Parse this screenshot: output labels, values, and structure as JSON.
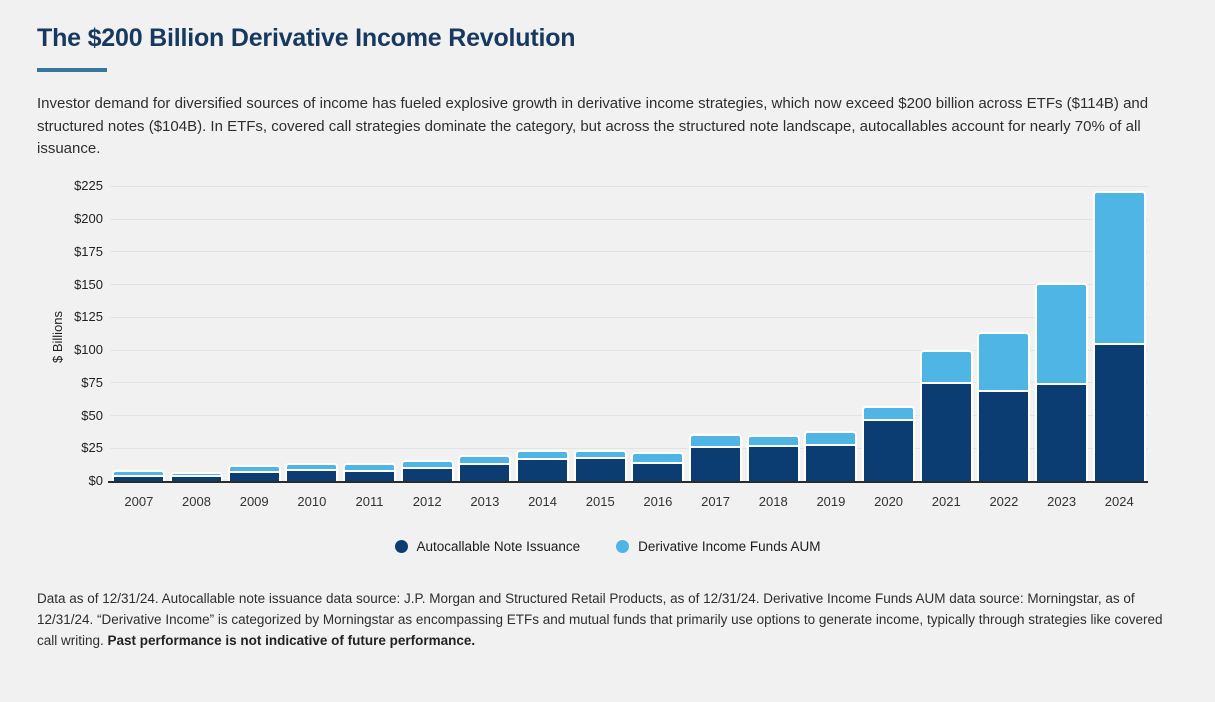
{
  "page": {
    "background": "#f1f1f2"
  },
  "header": {
    "title": "The $200 Billion Derivative Income Revolution",
    "accent_color": "#35789b"
  },
  "intro": {
    "text": "Investor demand for diversified sources of income has fueled explosive growth in derivative income strategies, which now exceed $200 billion across ETFs ($114B) and structured notes ($104B). In ETFs, covered call strategies dominate the category, but across the structured note landscape, autocallables account for nearly 70% of all issuance."
  },
  "chart_data": {
    "type": "bar",
    "stacked": true,
    "title": "",
    "xlabel": "",
    "ylabel": "$ Billions",
    "ylim": [
      0,
      225
    ],
    "ytick_step": 25,
    "yticks": [
      "$0",
      "$25",
      "$50",
      "$75",
      "$100",
      "$125",
      "$150",
      "$175",
      "$200",
      "$225"
    ],
    "grid": true,
    "legend_position": "bottom",
    "categories": [
      "2007",
      "2008",
      "2009",
      "2010",
      "2011",
      "2012",
      "2013",
      "2014",
      "2015",
      "2016",
      "2017",
      "2018",
      "2019",
      "2020",
      "2021",
      "2022",
      "2023",
      "2024"
    ],
    "series": [
      {
        "name": "Autocallable Note Issuance",
        "color": "#0c3d72",
        "values": [
          3,
          3,
          6,
          8,
          7,
          9,
          12,
          16,
          17,
          13,
          25,
          26,
          27,
          46,
          74,
          68,
          73,
          104
        ]
      },
      {
        "name": "Derivative Income Funds AUM",
        "color": "#4fb5e4",
        "values": [
          2,
          1,
          3,
          3,
          4,
          4,
          5,
          5,
          4,
          6,
          8,
          6,
          8,
          8,
          23,
          43,
          75,
          114
        ]
      }
    ]
  },
  "footer": {
    "text": "Data as of 12/31/24. Autocallable note issuance data source: J.P. Morgan and Structured Retail Products, as of 12/31/24. Derivative Income Funds AUM data source: Morningstar, as of 12/31/24. “Derivative Income” is categorized by Morningstar as encompassing ETFs and mutual funds that primarily use options to generate income, typically through strategies like covered call writing. ",
    "bold_text": "Past performance is not indicative of future performance."
  }
}
